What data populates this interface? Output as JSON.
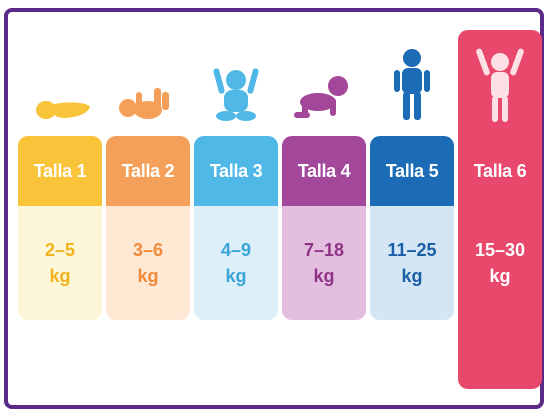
{
  "sizes": [
    {
      "label": "Talla 1",
      "range": "2–5",
      "unit": "kg",
      "icon": "newborn-swaddled-icon",
      "color": "#f9c33a",
      "light": "#fdf6d8",
      "text": "#f2b21c"
    },
    {
      "label": "Talla 2",
      "range": "3–6",
      "unit": "kg",
      "icon": "baby-lying-icon",
      "color": "#f5a05a",
      "light": "#fde8d4",
      "text": "#ee8a3a"
    },
    {
      "label": "Talla 3",
      "range": "4–9",
      "unit": "kg",
      "icon": "baby-sitting-icon",
      "color": "#4fb8e6",
      "light": "#ddf0fa",
      "text": "#3aa5d8"
    },
    {
      "label": "Talla 4",
      "range": "7–18",
      "unit": "kg",
      "icon": "baby-crawling-icon",
      "color": "#a3479a",
      "light": "#e4bedf",
      "text": "#8e3487"
    },
    {
      "label": "Talla 5",
      "range": "11–25",
      "unit": "kg",
      "icon": "toddler-standing-icon",
      "color": "#1b6bb6",
      "light": "#d4e6f6",
      "text": "#1a5ea6"
    },
    {
      "label": "Talla 6",
      "range": "15–30",
      "unit": "kg",
      "icon": "child-arms-up-icon",
      "color": "#e8486c",
      "light": "#e8486c",
      "text": "#ffffff"
    }
  ]
}
